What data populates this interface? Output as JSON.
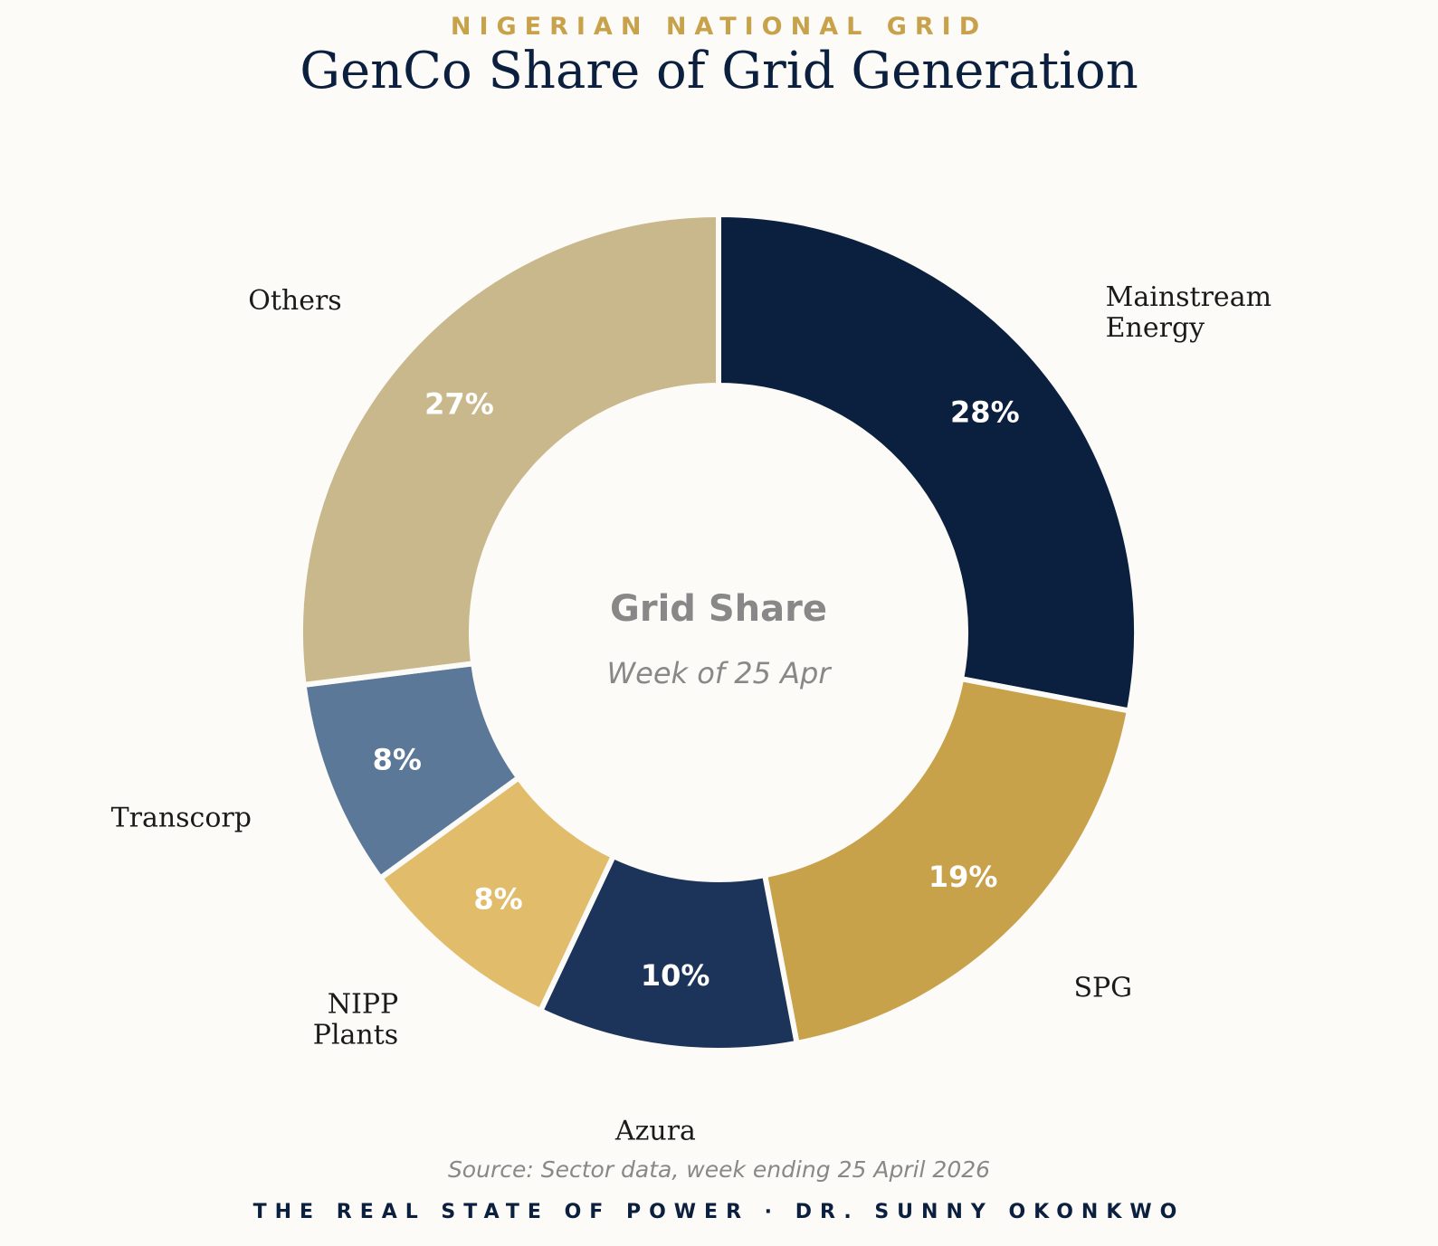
{
  "header": {
    "kicker": "NIGERIAN NATIONAL GRID",
    "title": "GenCo Share of Grid Generation"
  },
  "chart_data": {
    "type": "pie",
    "variant": "donut",
    "title": "GenCo Share of Grid Generation",
    "center_title": "Grid Share",
    "center_subtitle": "Week of 25 Apr",
    "start_angle": "12 o'clock",
    "direction": "clockwise",
    "slices": [
      {
        "label": "Mainstream Energy",
        "lines": [
          "Mainstream",
          "Energy"
        ],
        "value": 28,
        "display": "28%",
        "color": "#0b1f3f"
      },
      {
        "label": "SPG",
        "lines": [
          "SPG"
        ],
        "value": 19,
        "display": "19%",
        "color": "#c8a14b"
      },
      {
        "label": "Azura",
        "lines": [
          "Azura"
        ],
        "value": 10,
        "display": "10%",
        "color": "#1c3459"
      },
      {
        "label": "NIPP Plants",
        "lines": [
          "NIPP",
          "Plants"
        ],
        "value": 8,
        "display": "8%",
        "color": "#e1bd6b"
      },
      {
        "label": "Transcorp",
        "lines": [
          "Transcorp"
        ],
        "value": 8,
        "display": "8%",
        "color": "#5b7899"
      },
      {
        "label": "Others",
        "lines": [
          "Others"
        ],
        "value": 27,
        "display": "27%",
        "color": "#c8b88b"
      }
    ]
  },
  "footer": {
    "source": "Source: Sector data, week ending 25 April 2026",
    "byline": "THE REAL STATE OF POWER · DR. SUNNY OKONKWO"
  }
}
